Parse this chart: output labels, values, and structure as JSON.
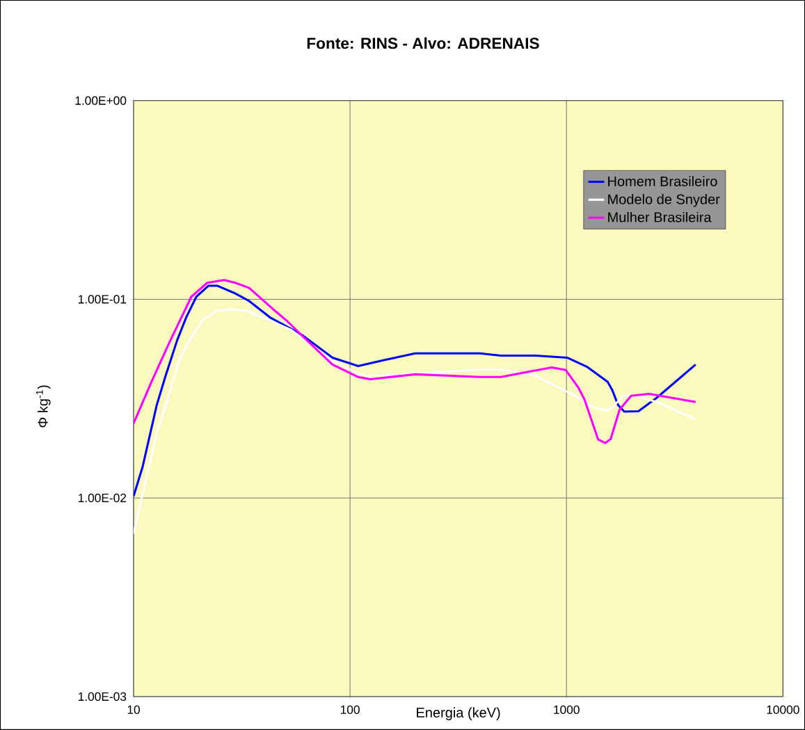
{
  "chart_data": {
    "type": "line",
    "title": "Fonte: RINS  -  Alvo: ADRENAIS",
    "xlabel": "Energia (keV)",
    "ylabel": "Φ kg$^{-1}$)",
    "log": "xy",
    "grid": true,
    "legend": "top right",
    "marker": "none",
    "line_style": "solid",
    "xlim": [
      10,
      10000
    ],
    "xticks": [
      10,
      100,
      1000,
      10000
    ],
    "ylim": [
      0.001,
      1
    ],
    "yticks": [
      {
        "value": 0.001,
        "label": "1.00E-03"
      },
      {
        "value": 0.01,
        "label": "1.00E-02"
      },
      {
        "value": 0.1,
        "label": "1.00E-01"
      },
      {
        "value": 1,
        "label": "1.00E+00"
      }
    ],
    "series": [
      {
        "name": "Homem Brasileiro",
        "color": "#0000ff",
        "x": [
          10,
          11,
          12.8,
          14.1,
          15.9,
          17.5,
          19.5,
          22.2,
          24.3,
          29.5,
          34.2,
          42.7,
          51,
          60.4,
          83,
          109,
          141,
          200,
          398,
          497,
          721,
          1007,
          1240,
          1550,
          1630,
          1730,
          1850,
          2150,
          2610,
          3950
        ],
        "values": [
          0.0102,
          0.0143,
          0.0294,
          0.0416,
          0.0622,
          0.081,
          0.103,
          0.117,
          0.117,
          0.107,
          0.098,
          0.081,
          0.073,
          0.0658,
          0.0508,
          0.0461,
          0.0492,
          0.0534,
          0.0534,
          0.052,
          0.052,
          0.0508,
          0.0458,
          0.0384,
          0.0348,
          0.0294,
          0.0272,
          0.0273,
          0.0319,
          0.0469
        ]
      },
      {
        "name": "Modelo de Snyder",
        "color": "#ffffff",
        "x": [
          10,
          11,
          12.8,
          14.3,
          16.2,
          18.1,
          21,
          24.3,
          28.2,
          33.5,
          41.7,
          53.3,
          65,
          83,
          109,
          119,
          200,
          398,
          497,
          705,
          1130,
          1340,
          1550,
          1850,
          2090,
          2690,
          3950
        ],
        "values": [
          0.0066,
          0.0104,
          0.0213,
          0.0309,
          0.0489,
          0.0622,
          0.079,
          0.0873,
          0.0891,
          0.0873,
          0.079,
          0.0702,
          0.0597,
          0.0489,
          0.0423,
          0.0412,
          0.0423,
          0.0443,
          0.0443,
          0.0416,
          0.0321,
          0.0285,
          0.0274,
          0.0327,
          0.0327,
          0.0301,
          0.0248
        ]
      },
      {
        "name": "Mulher Brasileira",
        "color": "#ff00ff",
        "x": [
          10,
          12.1,
          14.8,
          18.5,
          21.9,
          26.2,
          29.5,
          34.2,
          44,
          51,
          61.7,
          83,
          109,
          124,
          200,
          398,
          497,
          856,
          993,
          1130,
          1210,
          1400,
          1510,
          1600,
          1760,
          1990,
          2410,
          3950
        ],
        "values": [
          0.0237,
          0.0384,
          0.0622,
          0.103,
          0.121,
          0.125,
          0.121,
          0.114,
          0.0893,
          0.078,
          0.0637,
          0.0469,
          0.0406,
          0.0396,
          0.0419,
          0.0406,
          0.0406,
          0.0454,
          0.044,
          0.0362,
          0.0314,
          0.0197,
          0.0189,
          0.0198,
          0.0278,
          0.0327,
          0.0334,
          0.0304
        ]
      }
    ]
  }
}
